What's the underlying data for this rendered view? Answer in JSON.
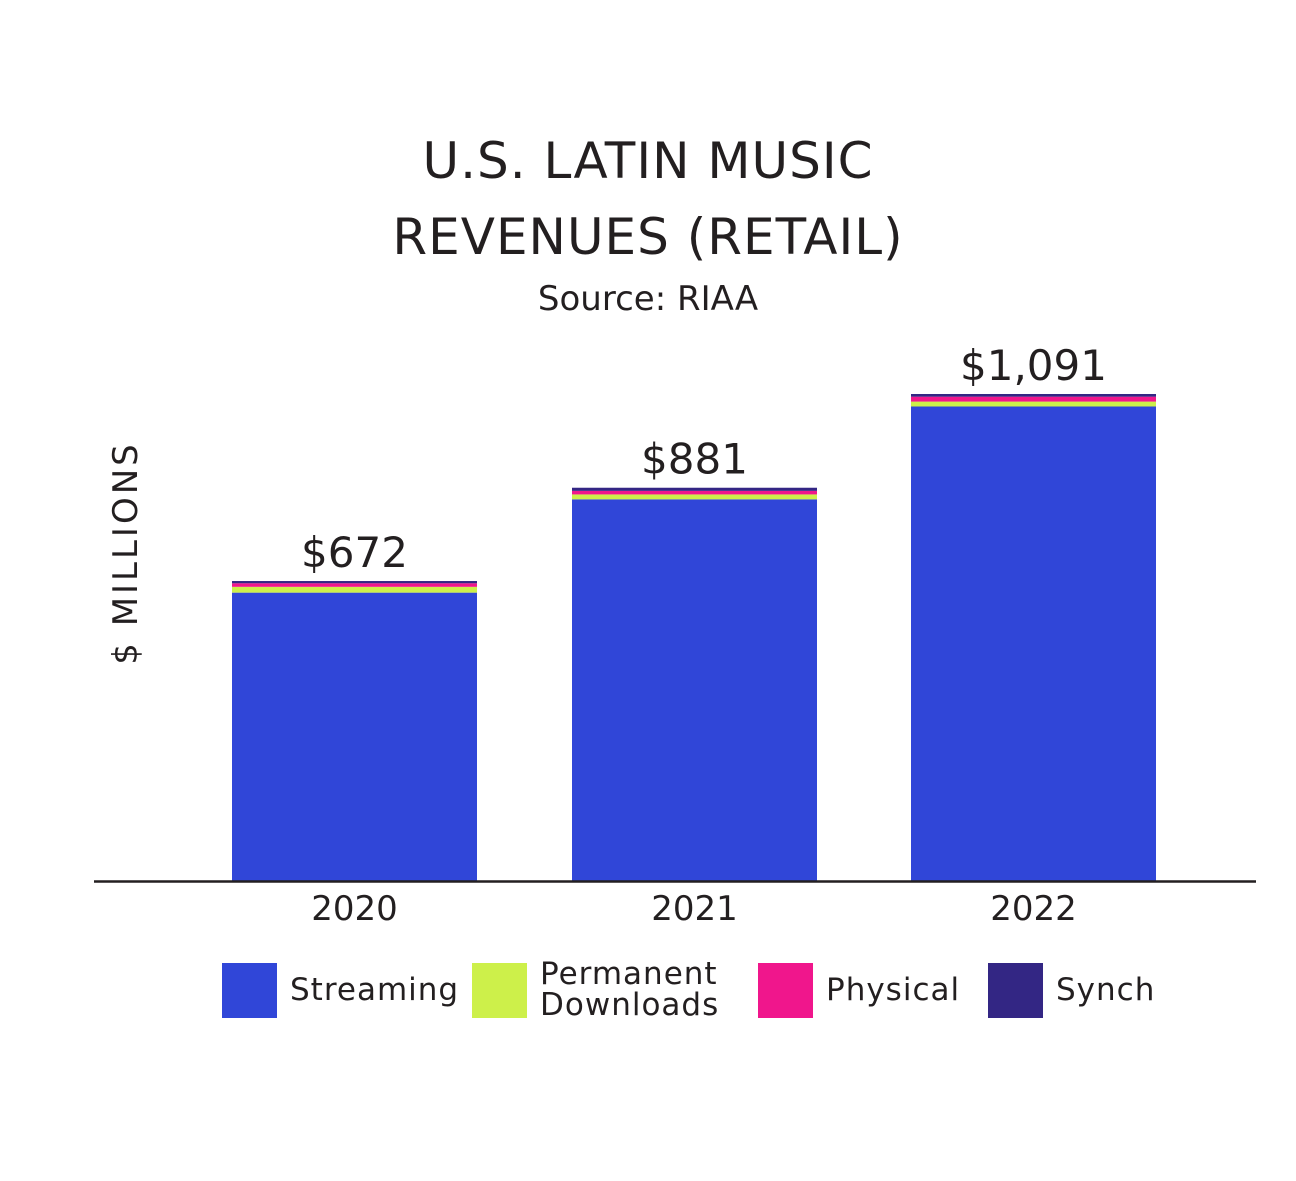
{
  "chart_data": {
    "type": "bar",
    "stacked": true,
    "title": [
      "U.S. LATIN MUSIC",
      "REVENUES (RETAIL)"
    ],
    "subtitle": "Source: RIAA",
    "ylabel": "$ MILLIONS",
    "xlabel": "",
    "categories": [
      "2020",
      "2021",
      "2022"
    ],
    "totals": [
      672,
      881,
      1091
    ],
    "total_labels": [
      "$672",
      "$881",
      "$1,091"
    ],
    "ylim": [
      0,
      1091
    ],
    "legend_position": "bottom",
    "grid": false,
    "series": [
      {
        "name": "Streaming",
        "color": "#3046d8",
        "values": [
          646,
          855,
          1063
        ]
      },
      {
        "name": "Permanent Downloads",
        "color": "#cdf04a",
        "values": [
          13,
          11,
          11
        ]
      },
      {
        "name": "Physical",
        "color": "#f0168c",
        "values": [
          8,
          8,
          11
        ]
      },
      {
        "name": "Synch",
        "color": "#332684",
        "values": [
          5,
          7,
          6
        ]
      }
    ],
    "legend": [
      {
        "label": "Streaming",
        "color": "#3046d8"
      },
      {
        "label": "Permanent\nDownloads",
        "color": "#cdf04a"
      },
      {
        "label": "Physical",
        "color": "#f0168c"
      },
      {
        "label": "Synch",
        "color": "#332684"
      }
    ]
  }
}
